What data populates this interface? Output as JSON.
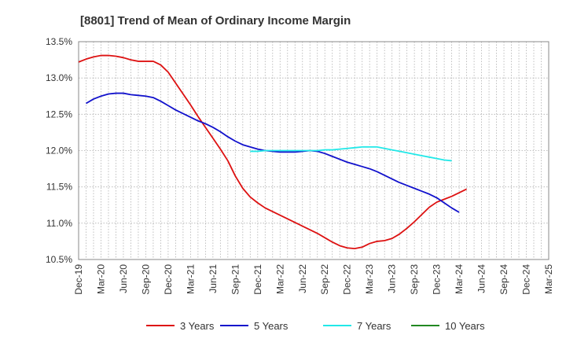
{
  "chart_data": {
    "type": "line",
    "title": "[8801]  Trend of Mean of Ordinary Income Margin",
    "xlabel": "",
    "ylabel": "",
    "ylim": [
      10.5,
      13.5
    ],
    "y_ticks": [
      "13.5%",
      "13.0%",
      "12.5%",
      "12.0%",
      "11.5%",
      "11.0%",
      "10.5%"
    ],
    "y_tick_values": [
      13.5,
      13.0,
      12.5,
      12.0,
      11.5,
      11.0,
      10.5
    ],
    "x_ticks": [
      "Dec-19",
      "Mar-20",
      "Jun-20",
      "Sep-20",
      "Dec-20",
      "Mar-21",
      "Jun-21",
      "Sep-21",
      "Dec-21",
      "Mar-22",
      "Jun-22",
      "Sep-22",
      "Dec-22",
      "Mar-23",
      "Jun-23",
      "Sep-23",
      "Dec-23",
      "Mar-24",
      "Jun-24",
      "Sep-24",
      "Dec-24",
      "Mar-25"
    ],
    "grid": true,
    "legend_placement": "bottom",
    "series": [
      {
        "name": "3 Years",
        "color": "#dd1111",
        "start_index": 0,
        "values": [
          13.22,
          13.26,
          13.29,
          13.31,
          13.31,
          13.3,
          13.28,
          13.25,
          13.23,
          13.23,
          13.23,
          13.18,
          13.08,
          12.93,
          12.78,
          12.63,
          12.47,
          12.32,
          12.17,
          12.02,
          11.86,
          11.65,
          11.48,
          11.36,
          11.28,
          11.21,
          11.16,
          11.11,
          11.06,
          11.01,
          10.96,
          10.91,
          10.86,
          10.8,
          10.74,
          10.69,
          10.66,
          10.65,
          10.67,
          10.72,
          10.75,
          10.76,
          10.79,
          10.85,
          10.93,
          11.02,
          11.12,
          11.22,
          11.29,
          11.33,
          11.37,
          11.42,
          11.47
        ]
      },
      {
        "name": "5 Years",
        "color": "#1111cc",
        "start_index": 1,
        "values": [
          12.65,
          12.71,
          12.75,
          12.78,
          12.79,
          12.79,
          12.77,
          12.76,
          12.75,
          12.73,
          12.68,
          12.62,
          12.56,
          12.51,
          12.46,
          12.41,
          12.37,
          12.32,
          12.26,
          12.19,
          12.13,
          12.08,
          12.05,
          12.02,
          12.0,
          11.99,
          11.98,
          11.98,
          11.98,
          11.99,
          12.0,
          11.99,
          11.96,
          11.92,
          11.88,
          11.84,
          11.81,
          11.78,
          11.75,
          11.71,
          11.66,
          11.61,
          11.56,
          11.52,
          11.48,
          11.44,
          11.4,
          11.35,
          11.28,
          11.21,
          11.15
        ]
      },
      {
        "name": "7 Years",
        "color": "#22e8e8",
        "start_index": 23,
        "values": [
          11.99,
          11.99,
          12.0,
          12.0,
          12.0,
          12.0,
          12.0,
          12.0,
          12.0,
          12.0,
          12.01,
          12.01,
          12.02,
          12.03,
          12.04,
          12.05,
          12.05,
          12.05,
          12.03,
          12.01,
          11.99,
          11.97,
          11.95,
          11.93,
          11.91,
          11.89,
          11.87,
          11.86
        ]
      },
      {
        "name": "10 Years",
        "color": "#228822",
        "start_index": 0,
        "values": []
      }
    ]
  }
}
